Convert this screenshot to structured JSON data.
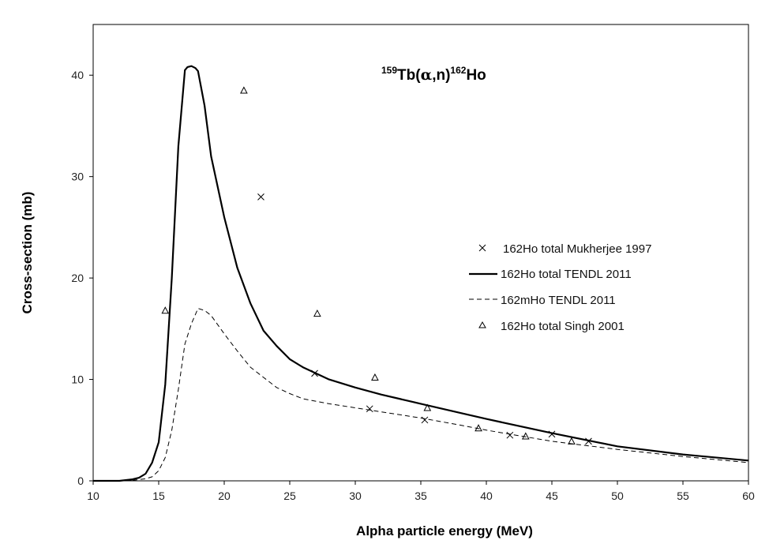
{
  "chart_data": {
    "type": "line",
    "title": {
      "target_mass": "159",
      "target": "Tb(",
      "alpha_symbol": "α",
      "reaction_rest": ",n)",
      "product_mass": "162",
      "product": "Ho"
    },
    "xlabel": "Alpha particle energy (MeV)",
    "ylabel": "Cross-section (mb)",
    "xlim": [
      10,
      60
    ],
    "ylim": [
      0,
      45
    ],
    "xticks": [
      10,
      15,
      20,
      25,
      30,
      35,
      40,
      45,
      50,
      55,
      60
    ],
    "yticks": [
      0,
      10,
      20,
      30,
      40
    ],
    "legend_position": "center-right",
    "series": [
      {
        "name": "162Ho total Mukherjee 1997",
        "style": "marker-x",
        "color": "#000000",
        "x": [
          22.8,
          26.9,
          31.1,
          35.3,
          41.8,
          45.0,
          47.8
        ],
        "y": [
          28.0,
          10.6,
          7.1,
          6.0,
          4.5,
          4.6,
          3.9
        ]
      },
      {
        "name": "162Ho total TENDL 2011",
        "style": "solid",
        "color": "#000000",
        "x": [
          10,
          12,
          13,
          13.5,
          14,
          14.5,
          15,
          15.5,
          16,
          16.5,
          17,
          17.2,
          17.5,
          17.8,
          18,
          18.5,
          19,
          20,
          21,
          22,
          23,
          24,
          25,
          26,
          28,
          30,
          32,
          35,
          38,
          40,
          45,
          50,
          55,
          60
        ],
        "y": [
          0,
          0,
          0.15,
          0.3,
          0.7,
          1.8,
          3.8,
          9.5,
          20.0,
          33.0,
          40.5,
          40.8,
          40.9,
          40.7,
          40.4,
          37.0,
          32.0,
          26.0,
          21.0,
          17.5,
          14.8,
          13.3,
          12.0,
          11.2,
          10.0,
          9.2,
          8.5,
          7.6,
          6.7,
          6.1,
          4.7,
          3.4,
          2.6,
          2.0
        ]
      },
      {
        "name": "162mHo TENDL 2011",
        "style": "dashed",
        "color": "#000000",
        "x": [
          10,
          13,
          14,
          14.5,
          15,
          15.5,
          16,
          16.5,
          17,
          17.5,
          18,
          18.5,
          19,
          20,
          21,
          22,
          23,
          24,
          25,
          26,
          28,
          30,
          32,
          35,
          38,
          40,
          45,
          50,
          55,
          60
        ],
        "y": [
          0,
          0.05,
          0.2,
          0.4,
          1.0,
          2.3,
          5.0,
          9.0,
          13.5,
          15.5,
          17.0,
          16.8,
          16.3,
          14.5,
          12.8,
          11.2,
          10.2,
          9.2,
          8.6,
          8.1,
          7.6,
          7.2,
          6.8,
          6.2,
          5.5,
          5.0,
          3.9,
          3.1,
          2.4,
          1.8
        ]
      },
      {
        "name": "162Ho total Singh 2001",
        "style": "marker-triangle",
        "color": "#000000",
        "x": [
          15.5,
          21.5,
          27.1,
          31.5,
          35.5,
          39.4,
          43.0,
          46.5
        ],
        "y": [
          16.8,
          38.5,
          16.5,
          10.2,
          7.2,
          5.2,
          4.4,
          3.9
        ]
      }
    ]
  }
}
